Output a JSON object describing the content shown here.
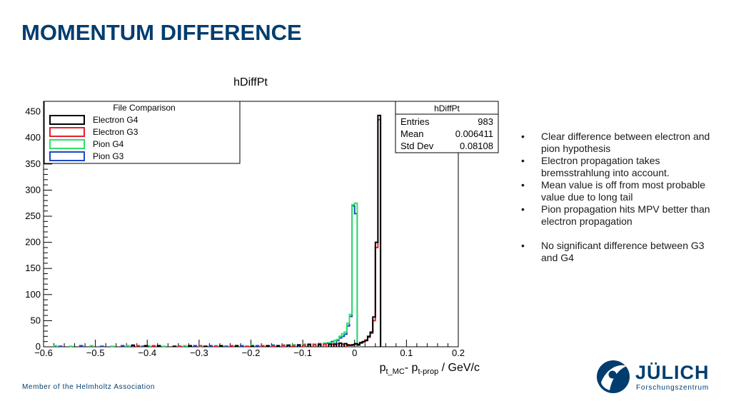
{
  "slide": {
    "title": "MOMENTUM DIFFERENCE",
    "footer": "Member of the Helmholtz Association",
    "logo": {
      "word": "JÜLICH",
      "sub": "Forschungszentrum",
      "color": "#003d6e"
    }
  },
  "bullets": [
    {
      "text": "Clear difference between electron and pion hypothesis",
      "gap": false
    },
    {
      "text": "Electron propagation takes bremsstrahlung into account.",
      "gap": false
    },
    {
      "text": "Mean value is off from most probable value due to long tail",
      "gap": false
    },
    {
      "text": "Pion propagation hits MPV better than electron propagation",
      "gap": false
    },
    {
      "text": "No significant difference between G3 and G4",
      "gap": true
    }
  ],
  "chart_data": {
    "type": "histogram",
    "title": "hDiffPt",
    "xlabel_parts": {
      "p1": "p",
      "sub1": "t_MC",
      "sep": "- ",
      "p2": "p",
      "sub2": "t-prop",
      "tail": " / GeV/c"
    },
    "xlim": [
      -0.6,
      0.2
    ],
    "ylim": [
      0,
      470
    ],
    "x_ticks": [
      -0.6,
      -0.5,
      -0.4,
      -0.3,
      -0.2,
      -0.1,
      0,
      0.1,
      0.2
    ],
    "x_tick_labels": [
      "−0.6",
      "−0.5",
      "−0.4",
      "−0.3",
      "−0.2",
      "−0.1",
      "0",
      "0.1",
      "0.2"
    ],
    "y_ticks": [
      0,
      50,
      100,
      150,
      200,
      250,
      300,
      350,
      400,
      450
    ],
    "y_tick_labels": [
      "0",
      "50",
      "100",
      "150",
      "200",
      "250",
      "300",
      "350",
      "400",
      "450"
    ],
    "bin_width": 0.005,
    "legend": {
      "title": "File Comparison",
      "position": "top-left",
      "entries": [
        "Electron G4",
        "Electron G3",
        "Pion G4",
        "Pion G3"
      ]
    },
    "stats": {
      "title": "hDiffPt",
      "position": "top-right",
      "rows": [
        {
          "label": "Entries",
          "value": "983"
        },
        {
          "label": "Mean",
          "value": "0.006411"
        },
        {
          "label": "Std Dev",
          "value": "0.08108"
        }
      ]
    },
    "series": [
      {
        "name": "Electron G4",
        "color": "#000000",
        "bins": [
          [
            -0.43,
            3
          ],
          [
            -0.405,
            2
          ],
          [
            -0.38,
            2
          ],
          [
            -0.35,
            1
          ],
          [
            -0.32,
            2
          ],
          [
            -0.29,
            1
          ],
          [
            -0.26,
            2
          ],
          [
            -0.23,
            2
          ],
          [
            -0.2,
            1
          ],
          [
            -0.17,
            2
          ],
          [
            -0.15,
            2
          ],
          [
            -0.13,
            3
          ],
          [
            -0.11,
            3
          ],
          [
            -0.09,
            4
          ],
          [
            -0.07,
            4
          ],
          [
            -0.05,
            5
          ],
          [
            -0.04,
            5
          ],
          [
            -0.03,
            7
          ],
          [
            -0.02,
            6
          ],
          [
            -0.015,
            3
          ],
          [
            -0.01,
            3
          ],
          [
            -0.005,
            4
          ],
          [
            0,
            6
          ],
          [
            0.005,
            4
          ],
          [
            0.01,
            8
          ],
          [
            0.015,
            10
          ],
          [
            0.02,
            12
          ],
          [
            0.025,
            20
          ],
          [
            0.03,
            28
          ],
          [
            0.035,
            57
          ],
          [
            0.04,
            200
          ],
          [
            0.045,
            443
          ]
        ]
      },
      {
        "name": "Electron G3",
        "color": "#e8202a",
        "bins": [
          [
            -0.42,
            2
          ],
          [
            -0.39,
            2
          ],
          [
            -0.34,
            1
          ],
          [
            -0.3,
            2
          ],
          [
            -0.27,
            1
          ],
          [
            -0.24,
            2
          ],
          [
            -0.21,
            1
          ],
          [
            -0.18,
            2
          ],
          [
            -0.16,
            1
          ],
          [
            -0.14,
            3
          ],
          [
            -0.12,
            2
          ],
          [
            -0.1,
            3
          ],
          [
            -0.08,
            4
          ],
          [
            -0.06,
            5
          ],
          [
            -0.045,
            5
          ],
          [
            -0.035,
            6
          ],
          [
            -0.025,
            5
          ],
          [
            -0.015,
            4
          ],
          [
            -0.01,
            3
          ],
          [
            -0.005,
            3
          ],
          [
            0,
            5
          ],
          [
            0.005,
            5
          ],
          [
            0.01,
            7
          ],
          [
            0.015,
            9
          ],
          [
            0.02,
            13
          ],
          [
            0.025,
            18
          ],
          [
            0.03,
            26
          ],
          [
            0.035,
            50
          ],
          [
            0.04,
            190
          ],
          [
            0.045,
            435
          ]
        ]
      },
      {
        "name": "Pion G4",
        "color": "#2fe06a",
        "bins": [
          [
            -0.58,
            2
          ],
          [
            -0.55,
            1
          ],
          [
            -0.51,
            2
          ],
          [
            -0.47,
            1
          ],
          [
            -0.44,
            2
          ],
          [
            -0.4,
            2
          ],
          [
            -0.37,
            1
          ],
          [
            -0.33,
            2
          ],
          [
            -0.3,
            1
          ],
          [
            -0.27,
            2
          ],
          [
            -0.23,
            2
          ],
          [
            -0.2,
            3
          ],
          [
            -0.17,
            2
          ],
          [
            -0.14,
            3
          ],
          [
            -0.12,
            4
          ],
          [
            -0.1,
            5
          ],
          [
            -0.08,
            5
          ],
          [
            -0.06,
            7
          ],
          [
            -0.05,
            8
          ],
          [
            -0.04,
            12
          ],
          [
            -0.035,
            14
          ],
          [
            -0.03,
            20
          ],
          [
            -0.025,
            25
          ],
          [
            -0.02,
            28
          ],
          [
            -0.015,
            45
          ],
          [
            -0.01,
            62
          ],
          [
            -0.005,
            272
          ],
          [
            0,
            275
          ],
          [
            0.005,
            5
          ]
        ]
      },
      {
        "name": "Pion G3",
        "color": "#1f47c7",
        "bins": [
          [
            -0.57,
            1
          ],
          [
            -0.53,
            2
          ],
          [
            -0.49,
            1
          ],
          [
            -0.45,
            2
          ],
          [
            -0.41,
            1
          ],
          [
            -0.38,
            2
          ],
          [
            -0.34,
            1
          ],
          [
            -0.31,
            2
          ],
          [
            -0.28,
            2
          ],
          [
            -0.25,
            1
          ],
          [
            -0.22,
            2
          ],
          [
            -0.19,
            2
          ],
          [
            -0.16,
            3
          ],
          [
            -0.13,
            3
          ],
          [
            -0.11,
            4
          ],
          [
            -0.09,
            5
          ],
          [
            -0.07,
            6
          ],
          [
            -0.055,
            7
          ],
          [
            -0.045,
            10
          ],
          [
            -0.035,
            12
          ],
          [
            -0.03,
            17
          ],
          [
            -0.025,
            20
          ],
          [
            -0.02,
            24
          ],
          [
            -0.015,
            40
          ],
          [
            -0.01,
            58
          ],
          [
            -0.005,
            270
          ],
          [
            0,
            255
          ],
          [
            0.005,
            3
          ]
        ]
      }
    ]
  }
}
